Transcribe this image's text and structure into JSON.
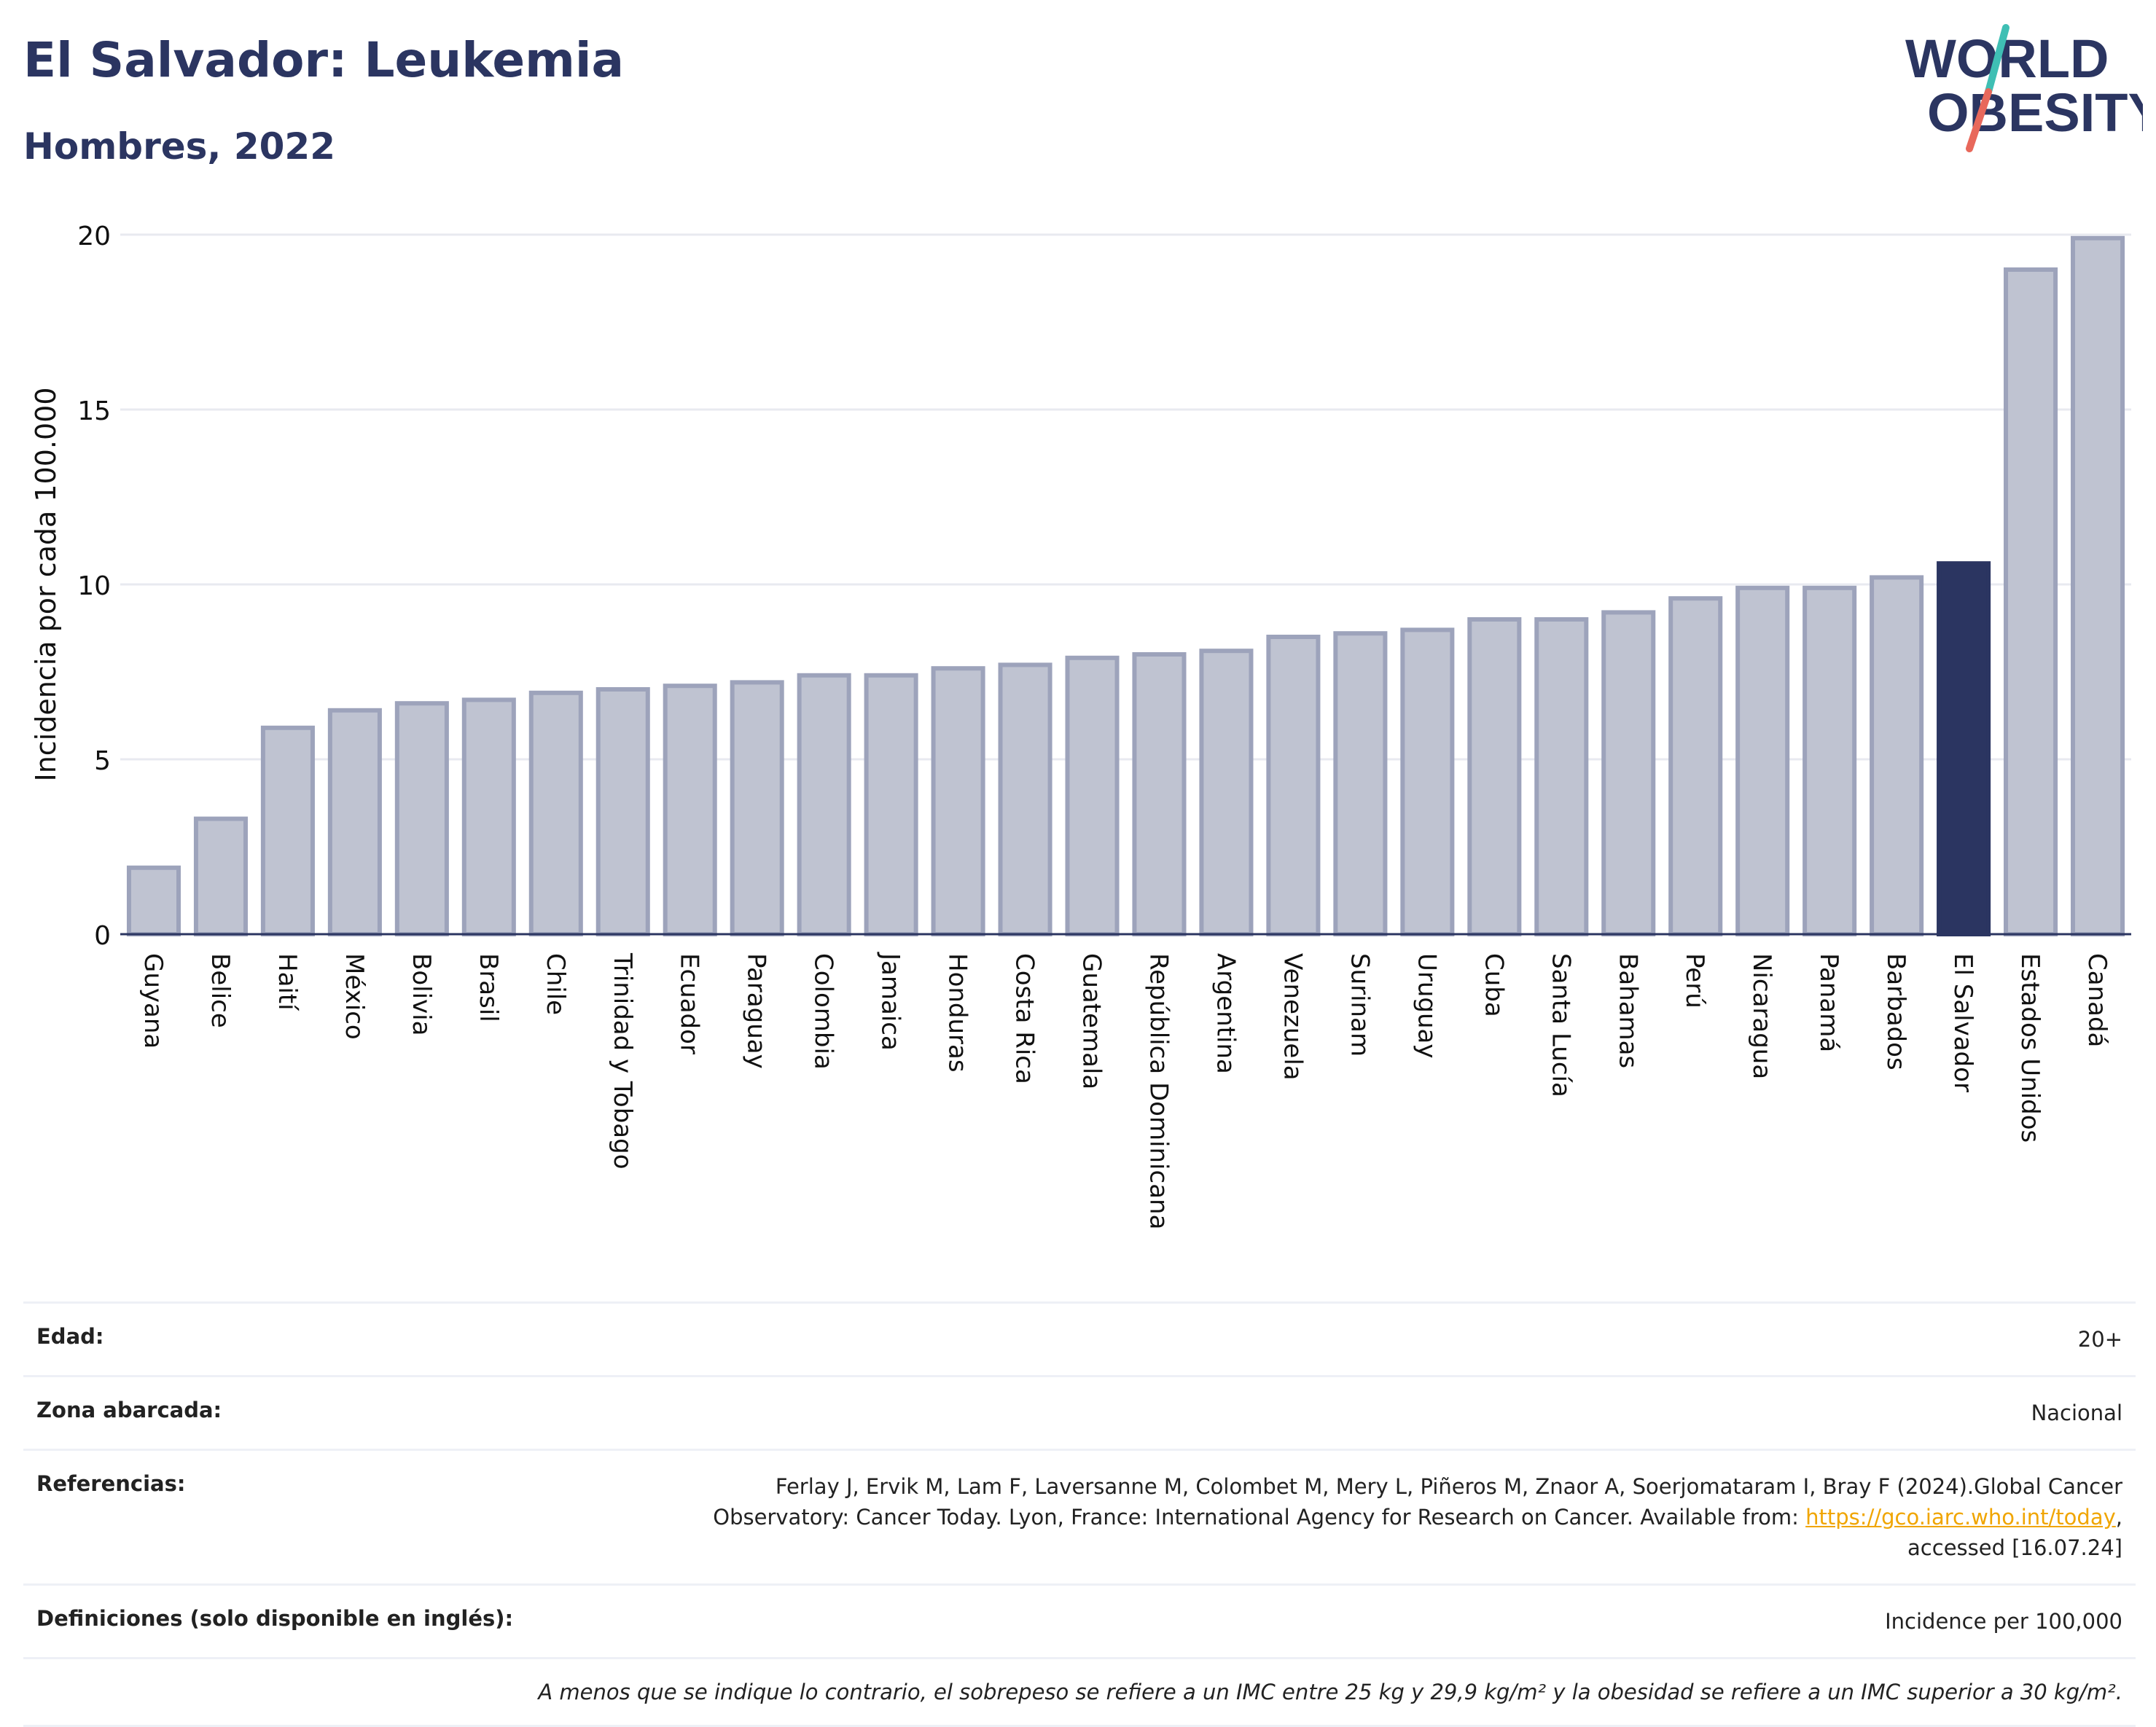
{
  "header": {
    "title": "El Salvador: Leukemia",
    "subtitle": "Hombres, 2022",
    "logo_line1": "WORLD",
    "logo_line2": "OBESITY"
  },
  "colors": {
    "bar": "#bfc3d1",
    "bar_edge": "#9da3bb",
    "highlight": "#2b3561",
    "logo_teal": "#3fbfb4",
    "logo_coral": "#e8685b"
  },
  "chart_data": {
    "type": "bar",
    "title": "El Salvador: Leukemia",
    "subtitle": "Hombres, 2022",
    "xlabel": "",
    "ylabel": "Incidencia por cada 100.000",
    "ylim": [
      0,
      20
    ],
    "yticks": [
      "0",
      "5",
      "10",
      "15",
      "20"
    ],
    "grid": true,
    "highlight": "El Salvador",
    "categories": [
      "Guyana",
      "Belice",
      "Haití",
      "México",
      "Bolivia",
      "Brasil",
      "Chile",
      "Trinidad y Tobago",
      "Ecuador",
      "Paraguay",
      "Colombia",
      "Jamaica",
      "Honduras",
      "Costa Rica",
      "Guatemala",
      "República Dominicana",
      "Argentina",
      "Venezuela",
      "Surinam",
      "Uruguay",
      "Cuba",
      "Santa Lucía",
      "Bahamas",
      "Perú",
      "Nicaragua",
      "Panamá",
      "Barbados",
      "El Salvador",
      "Estados Unidos",
      "Canadá"
    ],
    "values": [
      1.9,
      3.3,
      5.9,
      6.4,
      6.6,
      6.7,
      6.9,
      7.0,
      7.1,
      7.2,
      7.4,
      7.4,
      7.6,
      7.7,
      7.9,
      8.0,
      8.1,
      8.5,
      8.6,
      8.7,
      9.0,
      9.0,
      9.2,
      9.6,
      9.9,
      9.9,
      10.2,
      10.6,
      19.0,
      19.9
    ]
  },
  "info": {
    "edad_label": "Edad:",
    "edad_value": "20+",
    "zona_label": "Zona abarcada:",
    "zona_value": "Nacional",
    "ref_label": "Referencias:",
    "ref_line1": "Ferlay J, Ervik M, Lam F, Laversanne M, Colombet M, Mery L, Piñeros M, Znaor A, Soerjomataram I, Bray F (2024).Global Cancer",
    "ref_line2": "Observatory: Cancer Today. Lyon, France: International Agency for Research on Cancer. Available from: ",
    "ref_link": "https://gco.iarc.who.int/today",
    "ref_line2_end": ",",
    "ref_line3": "accessed [16.07.24]",
    "def_label": "Definiciones (solo disponible en inglés):",
    "def_value": "Incidence per 100,000",
    "note": "A menos que se indique lo contrario, el sobrepeso se refiere a un IMC entre 25 kg y 29,9 kg/m² y la obesidad se refiere a un IMC superior a 30 kg/m²."
  }
}
